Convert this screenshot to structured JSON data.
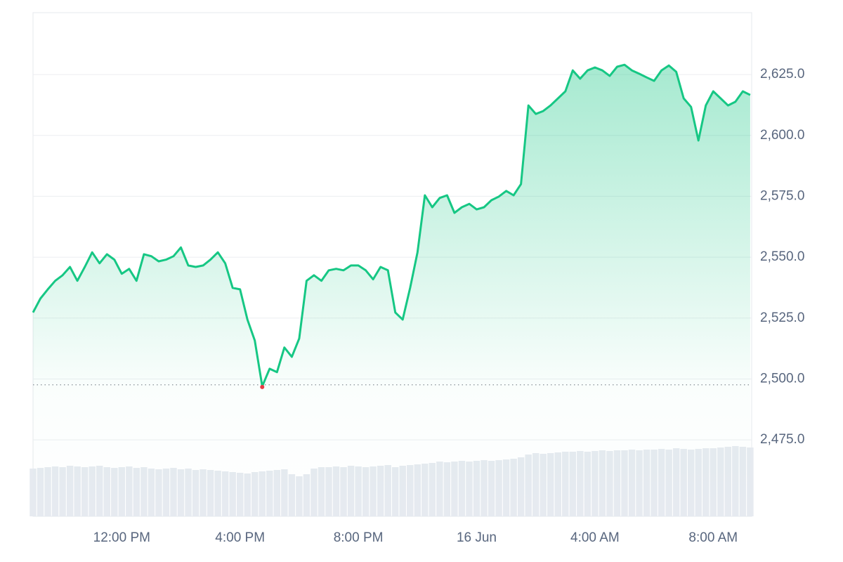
{
  "chart_data": {
    "type": "line",
    "x": [
      9,
      9.25,
      9.5,
      9.75,
      10,
      10.25,
      10.5,
      10.75,
      11,
      11.25,
      11.5,
      11.75,
      12,
      12.25,
      12.5,
      12.75,
      13,
      13.25,
      13.5,
      13.75,
      14,
      14.25,
      14.5,
      14.75,
      15,
      15.25,
      15.5,
      15.75,
      16,
      16.25,
      16.5,
      16.75,
      17,
      17.25,
      17.5,
      17.75,
      18,
      18.25,
      18.5,
      18.75,
      19,
      19.25,
      19.5,
      19.75,
      20,
      20.25,
      20.5,
      20.75,
      21,
      21.25,
      21.5,
      21.75,
      22,
      22.25,
      22.5,
      22.75,
      23,
      23.25,
      23.5,
      23.75,
      24,
      24.25,
      24.5,
      24.75,
      25,
      25.25,
      25.5,
      25.75,
      26,
      26.25,
      26.5,
      26.75,
      27,
      27.25,
      27.5,
      27.75,
      28,
      28.25,
      28.5,
      28.75,
      29,
      29.25,
      29.5,
      29.75,
      30,
      30.25,
      30.5,
      30.75,
      31,
      31.25,
      31.5,
      31.75,
      32,
      32.25,
      32.5,
      32.75,
      33,
      33.25
    ],
    "series": [
      {
        "color": "#16c784",
        "values": [
          2527.3,
          2533,
          2536.8,
          2540.3,
          2542.6,
          2546,
          2540.3,
          2546,
          2552,
          2547.5,
          2551.2,
          2549,
          2543.2,
          2545.2,
          2540.3,
          2551.2,
          2550.4,
          2548.3,
          2549,
          2550.4,
          2554,
          2546.6,
          2546,
          2546.6,
          2549,
          2552,
          2547.5,
          2537.4,
          2536.8,
          2524.4,
          2515.8,
          2497,
          2504.2,
          2502.8,
          2512.9,
          2509.1,
          2516.6,
          2540.3,
          2542.6,
          2540.3,
          2544.6,
          2545.2,
          2544.6,
          2546.6,
          2546.6,
          2544.6,
          2540.9,
          2546,
          2544.6,
          2527.3,
          2524.4,
          2537.4,
          2552,
          2575.4,
          2570.5,
          2574.3,
          2575.4,
          2568.2,
          2570.5,
          2571.9,
          2569.6,
          2570.5,
          2573.4,
          2574.9,
          2577.2,
          2575.4,
          2580,
          2612.3,
          2608.8,
          2610,
          2612.3,
          2615.2,
          2618.1,
          2626.7,
          2623.3,
          2626.7,
          2627.9,
          2626.7,
          2624.4,
          2628.2,
          2629,
          2626.7,
          2625.3,
          2623.8,
          2622.4,
          2626.7,
          2628.7,
          2626.1,
          2615.2,
          2611.7,
          2597.9,
          2612.3,
          2618.1,
          2615.2,
          2612.3,
          2613.8,
          2618.1,
          2616.6
        ]
      }
    ],
    "volume": {
      "color": "#e6eaf0",
      "vlim": [
        0,
        100
      ],
      "values": [
        68,
        69,
        70,
        71,
        70,
        72,
        71,
        70,
        71,
        72,
        70,
        69,
        70,
        71,
        69,
        70,
        68,
        67,
        68,
        69,
        67,
        68,
        66,
        67,
        66,
        65,
        64,
        63,
        62,
        61,
        63,
        64,
        65,
        66,
        67,
        60,
        57,
        60,
        68,
        70,
        70,
        71,
        70,
        72,
        71,
        70,
        71,
        72,
        73,
        70,
        72,
        73,
        74,
        75,
        76,
        78,
        77,
        78,
        79,
        78,
        79,
        80,
        79,
        80,
        81,
        82,
        84,
        88,
        90,
        89,
        90,
        91,
        92,
        92,
        93,
        92,
        93,
        94,
        93,
        94,
        94,
        95,
        94,
        95,
        95,
        96,
        95,
        97,
        96,
        95,
        96,
        97,
        97,
        98,
        99,
        100,
        99,
        98
      ]
    },
    "reference_value": 2497.6,
    "low_color": "#ea3943",
    "xlim": [
      9,
      33.3
    ],
    "xticks": [
      {
        "value": 12,
        "label": "12:00 PM"
      },
      {
        "value": 16,
        "label": "4:00 PM"
      },
      {
        "value": 20,
        "label": "8:00 PM"
      },
      {
        "value": 24,
        "label": "16 Jun"
      },
      {
        "value": 28,
        "label": "4:00 AM"
      },
      {
        "value": 32,
        "label": "8:00 AM"
      }
    ],
    "ylim": [
      2443.6,
      2650.4
    ],
    "yticks": [
      {
        "value": 2475,
        "label": "2,475.0"
      },
      {
        "value": 2500,
        "label": "2,500.0"
      },
      {
        "value": 2525,
        "label": "2,525.0"
      },
      {
        "value": 2550,
        "label": "2,550.0"
      },
      {
        "value": 2575,
        "label": "2,575.0"
      },
      {
        "value": 2600,
        "label": "2,600.0"
      },
      {
        "value": 2625,
        "label": "2,625.0"
      }
    ],
    "grid": true
  }
}
